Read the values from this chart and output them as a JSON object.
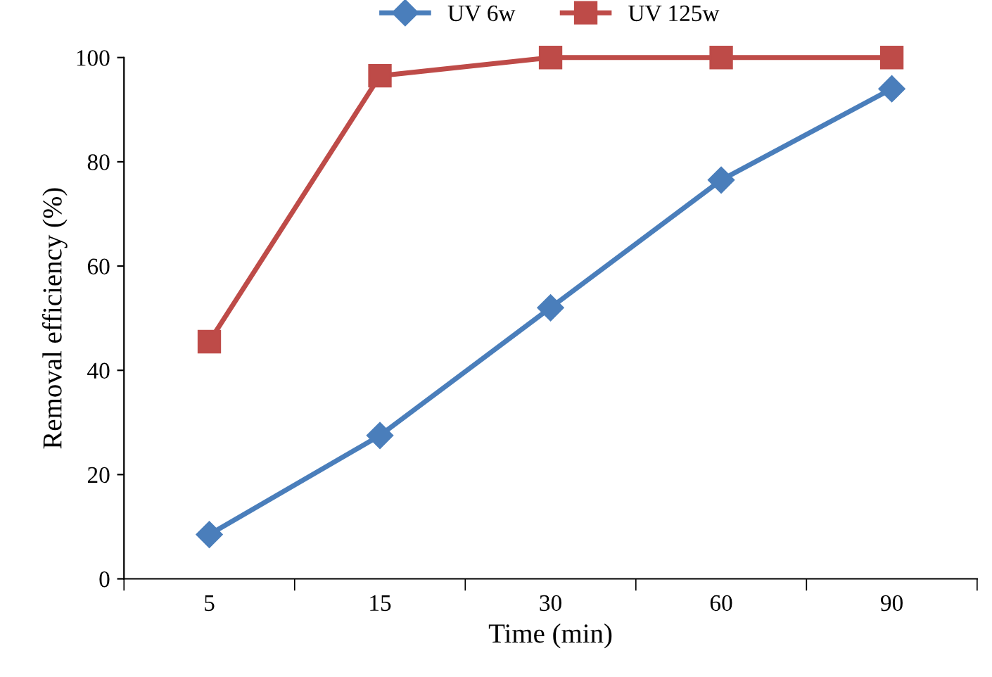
{
  "chart_data": {
    "type": "line",
    "xlabel": "Time (min)",
    "ylabel": "Removal efficiency (%)",
    "categories": [
      "5",
      "15",
      "30",
      "60",
      "90"
    ],
    "series": [
      {
        "name": "UV 6w",
        "color": "#4a7ebb",
        "marker": "diamond",
        "values": [
          8.5,
          27.5,
          52,
          76.5,
          94
        ]
      },
      {
        "name": "UV 125w",
        "color": "#be4b48",
        "marker": "square",
        "values": [
          45.5,
          96.5,
          100,
          100,
          100
        ]
      }
    ],
    "ylim": [
      0,
      100
    ],
    "yticks": [
      0,
      20,
      40,
      60,
      80,
      100
    ],
    "grid": false,
    "legend": "top",
    "line_style": "solid"
  }
}
